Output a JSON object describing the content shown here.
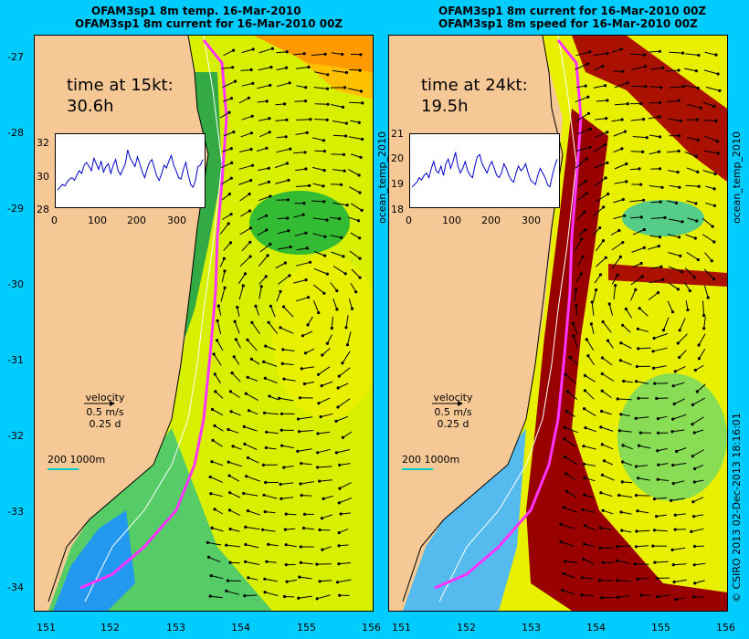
{
  "titles": {
    "left_line1": "OFAM3sp1 8m temp. 16-Mar-2010",
    "left_line2": "OFAM3sp1 8m current for 16-Mar-2010 00Z",
    "right_line1": "OFAM3sp1 8m current for 16-Mar-2010 00Z",
    "right_line2": "OFAM3sp1 8m speed for 16-Mar-2010 00Z"
  },
  "left_panel": {
    "time_label": "time at 15kt:",
    "time_value": "30.6h",
    "inset_yticks": [
      "32",
      "30",
      "28"
    ],
    "inset_xticks": [
      "0",
      "100",
      "200",
      "300"
    ],
    "inset_series": [
      29.1,
      29.3,
      29.5,
      29.4,
      29.7,
      29.9,
      30.0,
      29.8,
      30.2,
      30.5,
      30.3,
      30.9,
      31.1,
      30.8,
      30.5,
      31.4,
      31.0,
      30.6,
      31.2,
      30.4,
      30.8,
      31.0,
      30.3,
      30.9,
      31.3,
      30.5,
      30.2,
      30.6,
      31.0,
      32.0,
      31.4,
      31.1,
      30.8,
      31.5,
      31.0,
      30.4,
      30.0,
      30.6,
      31.1,
      31.3,
      30.7,
      30.1,
      29.8,
      30.3,
      30.9,
      30.7,
      31.2,
      31.6,
      30.9,
      30.5,
      30.0,
      29.9,
      30.6,
      31.1,
      30.2,
      29.5,
      29.3,
      29.8,
      30.8,
      30.9,
      31.3
    ]
  },
  "right_panel": {
    "time_label": "time at 24kt:",
    "time_value": "19.5h",
    "inset_yticks": [
      "21",
      "20",
      "19",
      "18"
    ],
    "inset_xticks": [
      "0",
      "100",
      "200",
      "300"
    ],
    "inset_series": [
      18.8,
      18.9,
      19.0,
      19.2,
      19.1,
      19.3,
      19.4,
      19.2,
      19.6,
      19.9,
      19.5,
      19.4,
      19.7,
      19.3,
      19.8,
      20.0,
      19.6,
      19.9,
      20.3,
      19.7,
      19.4,
      19.6,
      19.9,
      19.5,
      19.3,
      19.2,
      19.7,
      20.1,
      20.2,
      19.8,
      19.6,
      19.4,
      19.7,
      19.9,
      19.6,
      19.3,
      19.2,
      19.4,
      19.8,
      19.6,
      19.3,
      19.1,
      19.0,
      19.4,
      19.7,
      19.5,
      19.6,
      19.8,
      19.4,
      19.1,
      19.0,
      18.9,
      19.3,
      19.6,
      19.4,
      19.2,
      18.9,
      18.8,
      19.3,
      19.7,
      20.0
    ]
  },
  "legend": {
    "velocity_label": "velocity",
    "speed": "0.5 m/s",
    "duration": "0.25 d",
    "scale_label": "200  1000m"
  },
  "axes": {
    "y_labels": [
      "-27",
      "-28",
      "-29",
      "-30",
      "-31",
      "-32",
      "-33",
      "-34"
    ],
    "x_labels": [
      "151",
      "152",
      "153",
      "154",
      "155",
      "156"
    ]
  },
  "side_labels": {
    "ocean_temp_left": "ocean_temp_2010",
    "ocean_temp_right": "ocean_temp_2010",
    "copyright": "© CSIRO 2013  02-Dec-2013 18:16:01"
  },
  "colors": {
    "background": "#00ccff",
    "land": "#f6c895",
    "track": "#ff33ff",
    "isobath": "#ffffff"
  }
}
